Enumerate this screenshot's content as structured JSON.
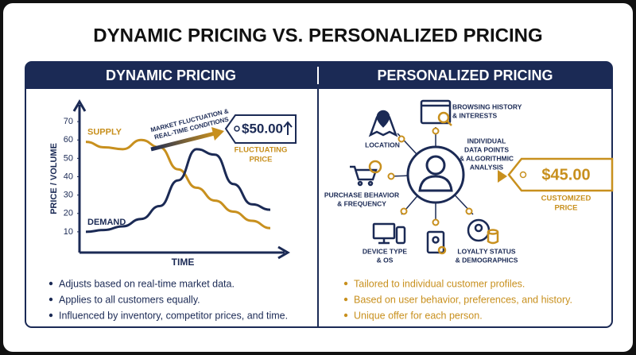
{
  "title": "DYNAMIC PRICING VS. PERSONALIZED PRICING",
  "dynamic": {
    "heading": "DYNAMIC PRICING",
    "chart": {
      "type": "line",
      "y_label": "PRICE / VOLUME",
      "x_label": "TIME",
      "ylim": [
        0,
        80
      ],
      "yticks": [
        10,
        20,
        30,
        40,
        50,
        60,
        70
      ],
      "series": [
        {
          "name": "SUPPLY",
          "color": "#c8901e",
          "values": [
            59,
            56,
            55,
            60,
            56,
            44,
            34,
            27,
            21,
            16,
            12
          ]
        },
        {
          "name": "DEMAND",
          "color": "#1b2a55",
          "values": [
            10,
            11,
            13,
            17,
            24,
            38,
            55,
            52,
            36,
            25,
            22
          ]
        }
      ]
    },
    "annotation": [
      "MARKET FLUCTUATION &",
      "REAL-TIME CONDITIONS"
    ],
    "price": "$50.00",
    "price_label": [
      "FLUCTUATING",
      "PRICE"
    ],
    "bullets": [
      "Adjusts based on real-time market data.",
      "Applies to all customers equally.",
      "Influenced by inventory, competitor prices, and time."
    ]
  },
  "personalized": {
    "heading": "PERSONALIZED PRICING",
    "nodes": [
      [
        "LOCATION"
      ],
      [
        "BROWSING HISTORY",
        "& INTERESTS"
      ],
      [
        "INDIVIDUAL",
        "DATA POINTS",
        "& ALGORITHMIC",
        "ANALYSIS"
      ],
      [
        "PURCHASE BEHAVIOR",
        "& FREQUENCY"
      ],
      [
        "DEVICE TYPE",
        "& OS"
      ],
      [
        "LOYALTY STATUS",
        "& DEMOGRAPHICS"
      ]
    ],
    "price": "$45.00",
    "price_label": [
      "CUSTOMIZED",
      "PRICE"
    ],
    "bullets": [
      "Tailored to individual customer profiles.",
      "Based on user behavior, preferences, and history.",
      "Unique offer for each person."
    ]
  }
}
